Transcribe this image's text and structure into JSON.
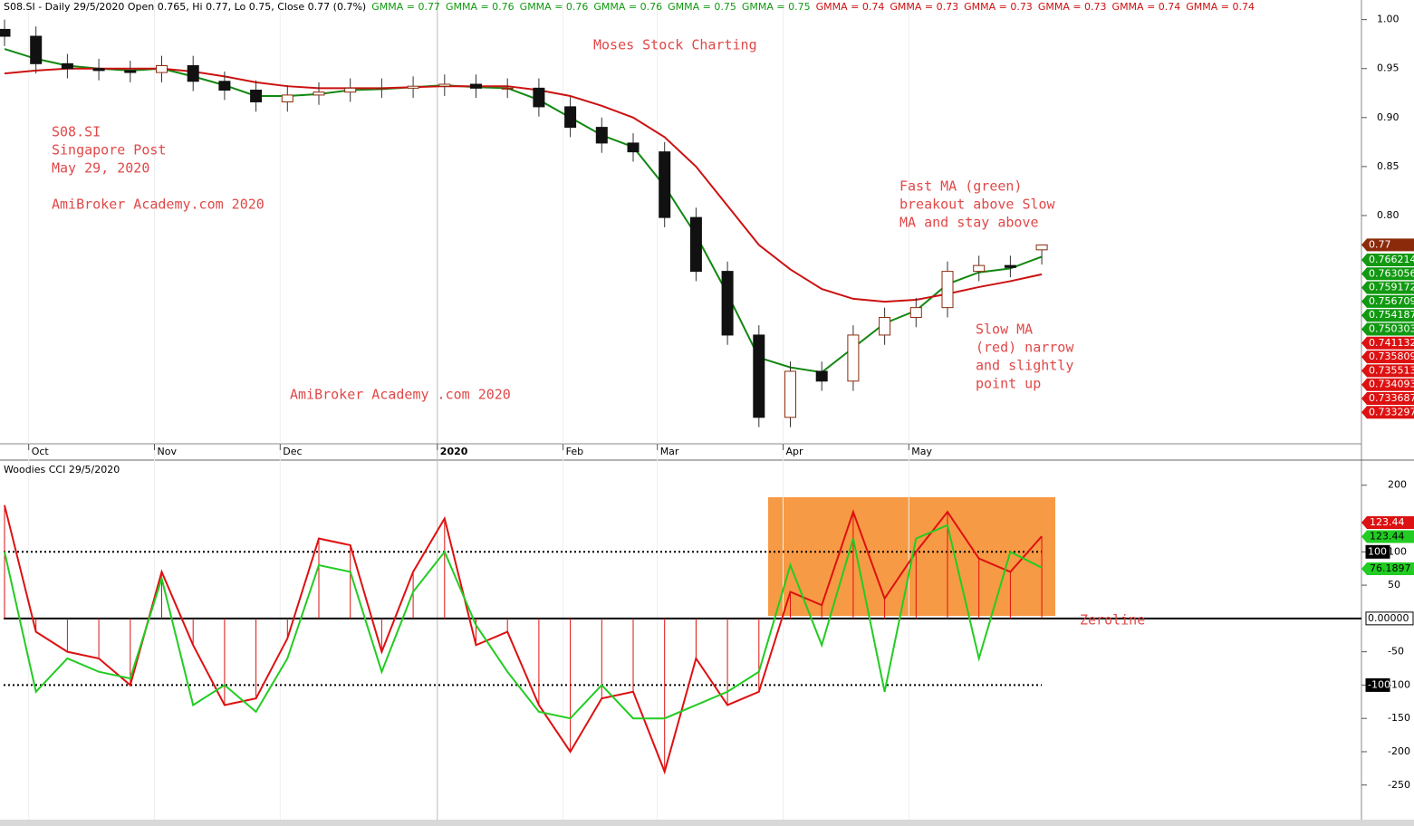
{
  "chart_data": [
    {
      "type": "candlestick",
      "title": "S08.SI - Daily 29/5/2020 Open 0.765, Hi 0.77, Lo 0.75, Close 0.77 (0.7%)",
      "gmma_labels": [
        "GMMA = 0.77",
        "GMMA = 0.76",
        "GMMA = 0.76",
        "GMMA = 0.76",
        "GMMA = 0.75",
        "GMMA = 0.75",
        "GMMA = 0.74",
        "GMMA = 0.73",
        "GMMA = 0.73",
        "GMMA = 0.73",
        "GMMA = 0.74",
        "GMMA = 0.74"
      ],
      "gmma_colors": [
        "#119911",
        "#119911",
        "#119911",
        "#119911",
        "#119911",
        "#119911",
        "#cc1111",
        "#cc1111",
        "#cc1111",
        "#cc1111",
        "#cc1111",
        "#cc1111"
      ],
      "categories": [
        null,
        "Oct",
        null,
        null,
        null,
        "Nov",
        null,
        null,
        null,
        "Dec",
        null,
        null,
        null,
        null,
        "2020",
        null,
        null,
        null,
        "Feb",
        null,
        null,
        "Mar",
        null,
        null,
        null,
        "Apr",
        null,
        null,
        null,
        "May",
        null,
        null,
        null,
        null
      ],
      "open": [
        0.99,
        0.983,
        0.955,
        0.95,
        0.948,
        0.946,
        0.953,
        0.937,
        0.928,
        0.916,
        0.923,
        0.926,
        0.93,
        0.93,
        0.932,
        0.934,
        0.93,
        0.93,
        0.911,
        0.89,
        0.874,
        0.865,
        0.798,
        0.743,
        0.678,
        0.594,
        0.641,
        0.631,
        0.678,
        0.696,
        0.706,
        0.743,
        0.749,
        0.765
      ],
      "high": [
        1.0,
        0.993,
        0.965,
        0.96,
        0.958,
        0.963,
        0.963,
        0.947,
        0.938,
        0.933,
        0.936,
        0.94,
        0.94,
        0.942,
        0.944,
        0.944,
        0.94,
        0.94,
        0.921,
        0.9,
        0.884,
        0.875,
        0.808,
        0.753,
        0.688,
        0.651,
        0.651,
        0.688,
        0.706,
        0.716,
        0.753,
        0.759,
        0.759,
        0.77
      ],
      "low": [
        0.973,
        0.945,
        0.94,
        0.938,
        0.936,
        0.936,
        0.927,
        0.918,
        0.906,
        0.906,
        0.913,
        0.916,
        0.92,
        0.92,
        0.922,
        0.92,
        0.92,
        0.901,
        0.88,
        0.864,
        0.855,
        0.788,
        0.733,
        0.668,
        0.584,
        0.584,
        0.621,
        0.621,
        0.668,
        0.686,
        0.696,
        0.733,
        0.737,
        0.75
      ],
      "close": [
        0.983,
        0.955,
        0.95,
        0.948,
        0.946,
        0.953,
        0.937,
        0.928,
        0.916,
        0.923,
        0.926,
        0.93,
        0.93,
        0.932,
        0.934,
        0.93,
        0.93,
        0.911,
        0.89,
        0.874,
        0.865,
        0.798,
        0.743,
        0.678,
        0.594,
        0.641,
        0.631,
        0.678,
        0.696,
        0.706,
        0.743,
        0.749,
        0.747,
        0.77
      ],
      "series": [
        {
          "color": "#118811",
          "values": [
            0.97,
            0.96,
            0.953,
            0.95,
            0.948,
            0.95,
            0.942,
            0.933,
            0.922,
            0.922,
            0.924,
            0.928,
            0.929,
            0.931,
            0.933,
            0.931,
            0.93,
            0.918,
            0.9,
            0.882,
            0.87,
            0.83,
            0.78,
            0.72,
            0.655,
            0.645,
            0.64,
            0.665,
            0.69,
            0.703,
            0.73,
            0.742,
            0.746,
            0.758
          ]
        },
        {
          "color": "#cc1111",
          "values": [
            0.945,
            0.948,
            0.95,
            0.95,
            0.95,
            0.95,
            0.947,
            0.942,
            0.936,
            0.932,
            0.93,
            0.93,
            0.93,
            0.931,
            0.932,
            0.932,
            0.932,
            0.928,
            0.922,
            0.912,
            0.9,
            0.88,
            0.85,
            0.81,
            0.77,
            0.745,
            0.725,
            0.715,
            0.712,
            0.714,
            0.72,
            0.727,
            0.733,
            0.74
          ]
        }
      ],
      "ylim": [
        0.567,
        1.02
      ],
      "yticks": [
        {
          "value": 1,
          "label": "1.00"
        },
        0.95,
        {
          "value": 0.9,
          "label": "0.90"
        },
        0.85,
        {
          "value": 0.8,
          "label": "0.80"
        }
      ],
      "last_values": [
        0.77,
        0.766214,
        0.763056,
        0.759172,
        0.756709,
        0.754187,
        0.750303,
        0.741132,
        0.735809,
        0.735513,
        0.734093,
        0.733687,
        0.733297
      ],
      "last_value_colors": [
        "#8b2a0a",
        "#119911",
        "#119911",
        "#119911",
        "#119911",
        "#119911",
        "#119911",
        "#dd1111",
        "#dd1111",
        "#dd1111",
        "#dd1111",
        "#dd1111",
        "#dd1111"
      ],
      "annotations": [
        "Moses Stock Charting",
        "S08.SI",
        "Singapore Post",
        "May 29, 2020",
        "AmiBroker Academy.com  2020",
        "Fast MA (green)",
        "breakout above Slow",
        "MA and stay above",
        "Slow MA",
        "(red) narrow",
        "and slightly",
        "point up",
        "AmiBroker Academy .com  2020"
      ]
    },
    {
      "type": "line",
      "title": "Woodies CCI  29/5/2020",
      "series": [
        {
          "color": "#dd1111",
          "values": [
            170,
            -20,
            -50,
            -60,
            -100,
            70,
            -40,
            -130,
            -120,
            -30,
            120,
            110,
            -50,
            70,
            150,
            -40,
            -20,
            -130,
            -200,
            -120,
            -110,
            -230,
            -60,
            -130,
            -110,
            40,
            20,
            160,
            30,
            100,
            160,
            90,
            70,
            123.44
          ]
        },
        {
          "color": "#22cc22",
          "values": [
            100,
            -110,
            -60,
            -80,
            -90,
            60,
            -130,
            -100,
            -140,
            -60,
            80,
            70,
            -80,
            40,
            100,
            -10,
            -80,
            -140,
            -150,
            -100,
            -150,
            -150,
            -130,
            -110,
            -80,
            80,
            -40,
            120,
            -110,
            120,
            140,
            -60,
            100,
            76.1897
          ]
        }
      ],
      "ylim": [
        -302,
        235
      ],
      "yticks": [
        200,
        100,
        50,
        -50,
        -100,
        -150,
        -200,
        -250
      ],
      "reference_lines": [
        {
          "value": 100,
          "label": "100"
        },
        {
          "value": 0,
          "label": "0.00000"
        },
        {
          "value": -100,
          "label": "-100"
        }
      ],
      "last_values": [
        123.44,
        123.44,
        76.1897
      ],
      "last_value_colors": [
        "#dd1111",
        "#22cc22",
        "#22cc22"
      ],
      "annotations": [
        "Zeroline"
      ]
    }
  ]
}
